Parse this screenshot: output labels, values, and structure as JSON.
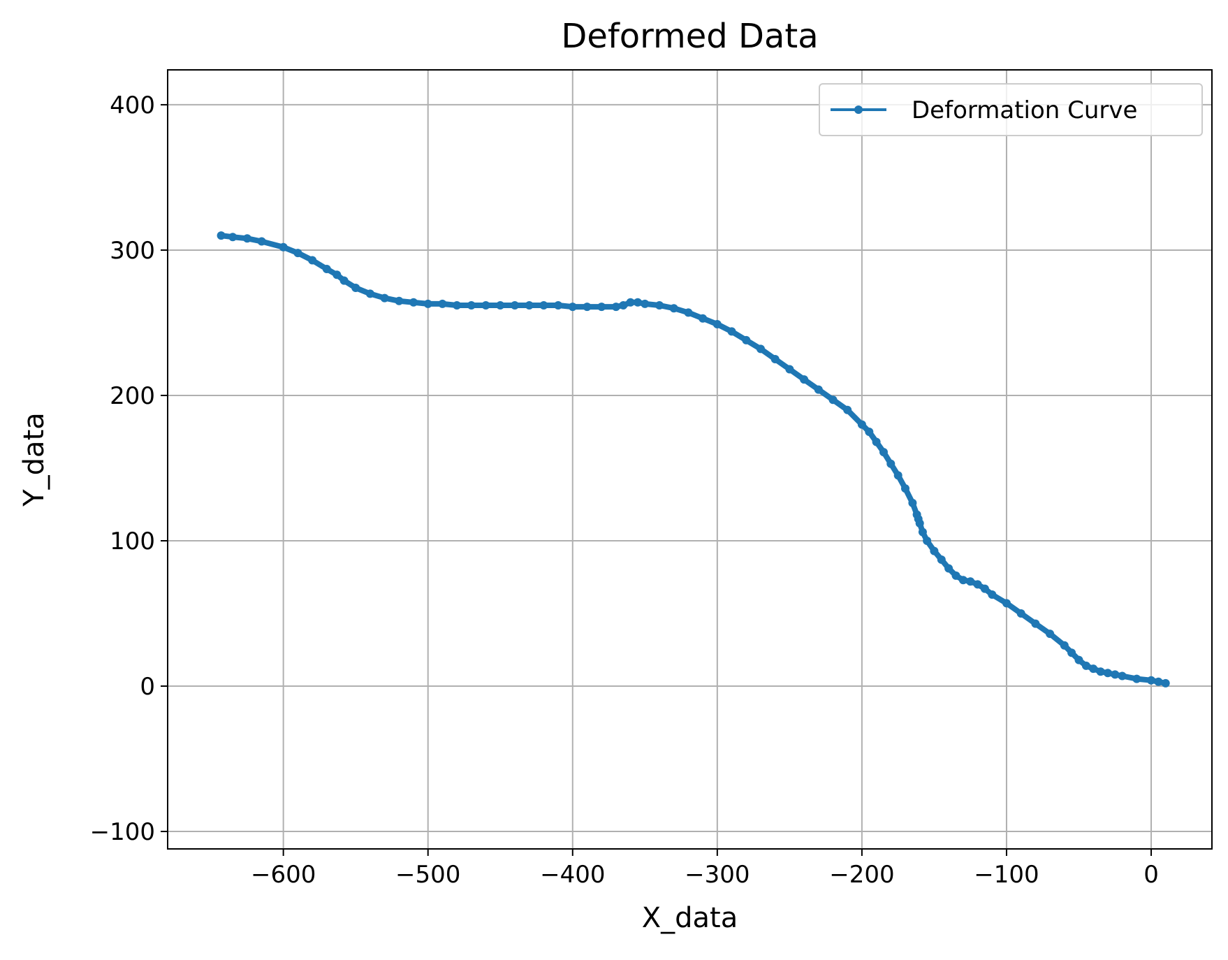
{
  "chart_data": {
    "type": "line",
    "title": "Deformed Data",
    "xlabel": "X_data",
    "ylabel": "Y_data",
    "xlim": [
      -680,
      42
    ],
    "ylim": [
      -112,
      424
    ],
    "x_ticks": [
      -600,
      -500,
      -400,
      -300,
      -200,
      -100,
      0
    ],
    "y_ticks": [
      -100,
      0,
      100,
      200,
      300,
      400
    ],
    "x_tick_labels": [
      "−600",
      "−500",
      "−400",
      "−300",
      "−200",
      "−100",
      "0"
    ],
    "y_tick_labels": [
      "−100",
      "0",
      "100",
      "200",
      "300",
      "400"
    ],
    "grid": true,
    "legend": {
      "position": "upper-right"
    },
    "series": [
      {
        "name": "Deformation Curve",
        "color": "#1f77b4",
        "marker": "circle",
        "x": [
          -643,
          -635,
          -625,
          -615,
          -600,
          -590,
          -580,
          -570,
          -563,
          -558,
          -550,
          -540,
          -530,
          -520,
          -510,
          -500,
          -490,
          -480,
          -470,
          -460,
          -450,
          -440,
          -430,
          -420,
          -410,
          -400,
          -390,
          -380,
          -370,
          -365,
          -360,
          -355,
          -350,
          -340,
          -330,
          -320,
          -310,
          -300,
          -290,
          -280,
          -270,
          -260,
          -250,
          -240,
          -230,
          -220,
          -210,
          -200,
          -195,
          -190,
          -185,
          -180,
          -175,
          -170,
          -165,
          -162,
          -161,
          -160,
          -158,
          -155,
          -150,
          -145,
          -140,
          -135,
          -130,
          -125,
          -120,
          -115,
          -110,
          -100,
          -90,
          -80,
          -70,
          -60,
          -55,
          -50,
          -45,
          -40,
          -35,
          -30,
          -25,
          -20,
          -10,
          0,
          5,
          10
        ],
        "y": [
          310,
          309,
          308,
          306,
          302,
          298,
          293,
          287,
          283,
          279,
          274,
          270,
          267,
          265,
          264,
          263,
          263,
          262,
          262,
          262,
          262,
          262,
          262,
          262,
          262,
          261,
          261,
          261,
          261,
          262,
          264,
          264,
          263,
          262,
          260,
          257,
          253,
          249,
          244,
          238,
          232,
          225,
          218,
          211,
          204,
          197,
          190,
          180,
          175,
          168,
          161,
          153,
          145,
          136,
          126,
          118,
          115,
          112,
          106,
          100,
          93,
          87,
          81,
          76,
          73,
          72,
          70,
          67,
          63,
          57,
          50,
          43,
          36,
          28,
          23,
          18,
          14,
          12,
          10,
          9,
          8,
          7,
          5,
          4,
          3,
          2
        ]
      }
    ]
  }
}
